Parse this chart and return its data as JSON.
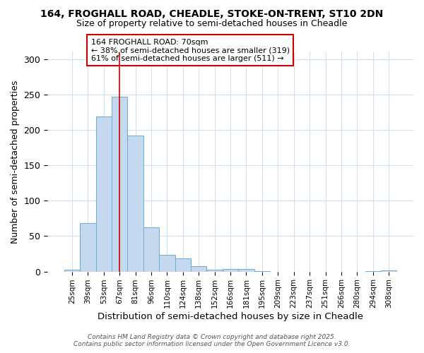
{
  "title_line1": "164, FROGHALL ROAD, CHEADLE, STOKE-ON-TRENT, ST10 2DN",
  "title_line2": "Size of property relative to semi-detached houses in Cheadle",
  "xlabel": "Distribution of semi-detached houses by size in Cheadle",
  "ylabel": "Number of semi-detached properties",
  "categories": [
    "25sqm",
    "39sqm",
    "53sqm",
    "67sqm",
    "81sqm",
    "96sqm",
    "110sqm",
    "124sqm",
    "138sqm",
    "152sqm",
    "166sqm",
    "181sqm",
    "195sqm",
    "209sqm",
    "223sqm",
    "237sqm",
    "251sqm",
    "266sqm",
    "280sqm",
    "294sqm",
    "308sqm"
  ],
  "values": [
    3,
    68,
    219,
    247,
    192,
    62,
    24,
    19,
    8,
    3,
    4,
    4,
    1,
    0,
    0,
    0,
    0,
    0,
    0,
    1,
    2
  ],
  "bar_color": "#c5d9ee",
  "bar_edge_color": "#6aaad4",
  "vline_x": 3,
  "vline_color": "#cc0000",
  "annotation_text": "164 FROGHALL ROAD: 70sqm\n← 38% of semi-detached houses are smaller (319)\n61% of semi-detached houses are larger (511) →",
  "annotation_box_color": "#ffffff",
  "annotation_box_edge": "#cc0000",
  "ylim": [
    0,
    310
  ],
  "yticks": [
    0,
    50,
    100,
    150,
    200,
    250,
    300
  ],
  "footer_line1": "Contains HM Land Registry data © Crown copyright and database right 2025.",
  "footer_line2": "Contains public sector information licensed under the Open Government Licence v3.0.",
  "bg_color": "#ffffff",
  "plot_bg_color": "#ffffff",
  "grid_color": "#d0e0ee"
}
